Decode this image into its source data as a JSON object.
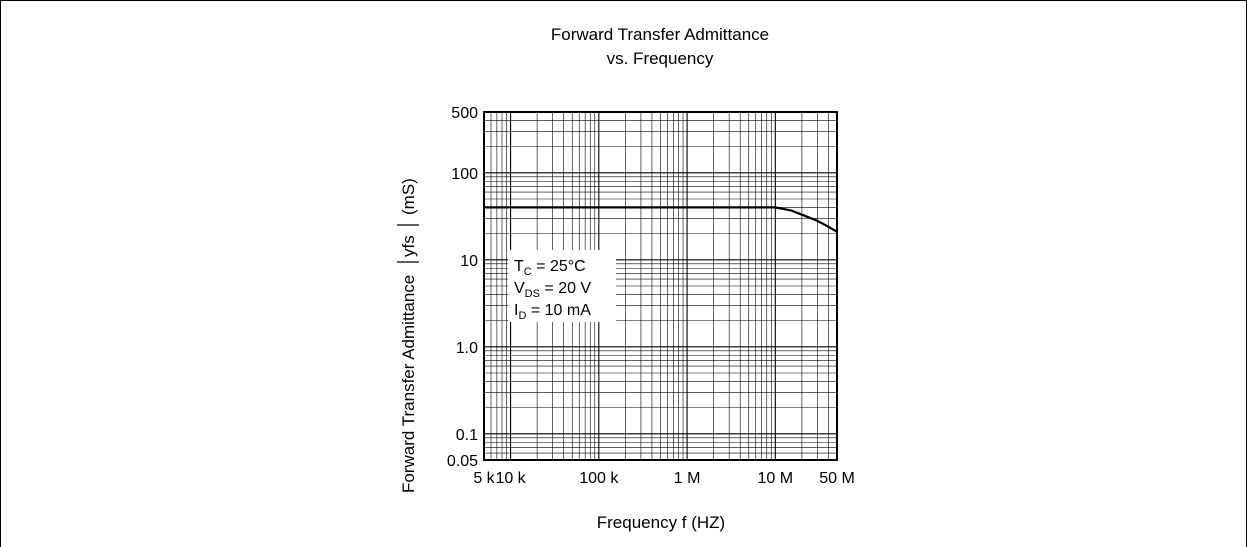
{
  "chart_data": {
    "type": "line",
    "title": "Forward Transfer Admittance",
    "subtitle": "vs. Frequency",
    "xlabel": "Frequency  f  (HZ)",
    "ylabel": "Forward Transfer Admittance  |yfs|  (mS)",
    "x_scale": "log",
    "y_scale": "log",
    "xlim": [
      5000,
      50000000
    ],
    "ylim": [
      0.05,
      500
    ],
    "x_ticks": [
      {
        "value": 5000,
        "label": "5 k"
      },
      {
        "value": 10000,
        "label": "10 k"
      },
      {
        "value": 100000,
        "label": "100 k"
      },
      {
        "value": 1000000,
        "label": "1 M"
      },
      {
        "value": 10000000,
        "label": "10 M"
      },
      {
        "value": 50000000,
        "label": "50 M"
      }
    ],
    "y_ticks": [
      {
        "value": 0.05,
        "label": "0.05"
      },
      {
        "value": 0.1,
        "label": "0.1"
      },
      {
        "value": 1,
        "label": "1.0"
      },
      {
        "value": 10,
        "label": "10"
      },
      {
        "value": 100,
        "label": "100"
      },
      {
        "value": 500,
        "label": "500"
      }
    ],
    "grid": true,
    "series": [
      {
        "name": "",
        "x": [
          5000,
          10000,
          100000,
          1000000,
          10000000,
          15000000,
          20000000,
          30000000,
          40000000,
          50000000
        ],
        "y": [
          40,
          40,
          40,
          40,
          40,
          37,
          33,
          28,
          24,
          21
        ]
      }
    ],
    "conditions": {
      "tc": {
        "main": "T",
        "sub": "C",
        "rest": " = 25°C"
      },
      "vds": {
        "main": "V",
        "sub": "DS",
        "rest": " = 20 V"
      },
      "id": {
        "main": "I",
        "sub": "D",
        "rest": " = 10 mA"
      }
    },
    "ylabel_parts": {
      "prefix": "Forward Transfer Admittance",
      "symbol": "yfs",
      "unit": "(mS)"
    }
  }
}
